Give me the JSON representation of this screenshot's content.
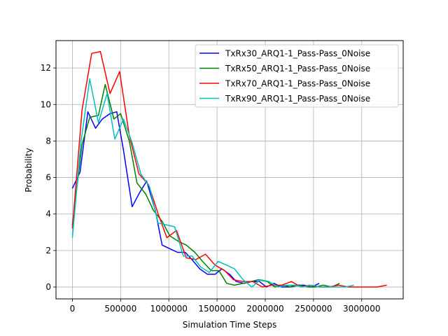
{
  "chart_data": {
    "type": "line",
    "title": "",
    "xlabel": "Simulation Time Steps",
    "ylabel": "Probability",
    "xlim": [
      -170000,
      3430000
    ],
    "ylim": [
      -0.65,
      13.5
    ],
    "xticks": [
      0,
      500000,
      1000000,
      1500000,
      2000000,
      2500000,
      3000000
    ],
    "xtick_labels": [
      "0",
      "500000",
      "1000000",
      "1500000",
      "2000000",
      "2500000",
      "3000000"
    ],
    "yticks": [
      0,
      2,
      4,
      6,
      8,
      10,
      12
    ],
    "ytick_labels": [
      "0",
      "2",
      "4",
      "6",
      "8",
      "10",
      "12"
    ],
    "grid": true,
    "legend_position": "top-right",
    "series": [
      {
        "name": "TxRx30_ARQ1-1_Pass-Pass_0Noise",
        "color": "#0000ff",
        "x": [
          0,
          80000,
          160000,
          240000,
          310000,
          390000,
          460000,
          530000,
          620000,
          700000,
          770000,
          860000,
          930000,
          1010000,
          1090000,
          1170000,
          1240000,
          1320000,
          1400000,
          1480000,
          1550000,
          1630000,
          1700000,
          1780000,
          1860000,
          1940000,
          2010000,
          2090000,
          2170000,
          2250000,
          2320000,
          2400000,
          2480000,
          2560000
        ],
        "y": [
          5.4,
          6.3,
          9.6,
          8.7,
          9.2,
          9.5,
          9.6,
          7.5,
          4.4,
          5.2,
          5.8,
          4.2,
          2.3,
          2.1,
          1.9,
          1.9,
          1.5,
          1.0,
          0.7,
          0.7,
          1.0,
          0.7,
          0.3,
          0.2,
          0.3,
          0.3,
          0.0,
          0.2,
          0.0,
          0.0,
          0.1,
          0.1,
          0.0,
          0.2
        ]
      },
      {
        "name": "TxRx50_ARQ1-1_Pass-Pass_0Noise",
        "color": "#008000",
        "x": [
          0,
          100000,
          180000,
          270000,
          340000,
          430000,
          500000,
          590000,
          670000,
          760000,
          840000,
          930000,
          1010000,
          1100000,
          1180000,
          1270000,
          1350000,
          1440000,
          1520000,
          1600000,
          1680000,
          1770000,
          1850000,
          1930000,
          2020000,
          2100000,
          2180000,
          2270000,
          2350000,
          2440000,
          2520000,
          2600000,
          2690000,
          2770000
        ],
        "y": [
          3.4,
          7.8,
          9.3,
          9.4,
          11.1,
          9.2,
          9.5,
          8.0,
          5.7,
          5.1,
          4.2,
          3.6,
          2.8,
          2.5,
          2.3,
          1.9,
          1.4,
          0.9,
          0.9,
          0.2,
          0.1,
          0.2,
          0.3,
          0.4,
          0.3,
          0.0,
          0.1,
          0.0,
          0.1,
          0.0,
          0.0,
          0.1,
          0.0,
          0.2
        ]
      },
      {
        "name": "TxRx70_ARQ1-1_Pass-Pass_0Noise",
        "color": "#ff0000",
        "x": [
          0,
          100000,
          200000,
          290000,
          390000,
          490000,
          590000,
          690000,
          790000,
          890000,
          980000,
          1080000,
          1180000,
          1280000,
          1380000,
          1480000,
          1580000,
          1670000,
          1770000,
          1870000,
          1970000,
          2070000,
          2170000,
          2270000,
          2370000,
          2460000,
          2560000,
          2660000,
          2760000,
          2860000,
          2960000,
          3060000,
          3160000,
          3260000
        ],
        "y": [
          3.2,
          9.7,
          12.8,
          12.9,
          10.6,
          11.8,
          8.3,
          6.2,
          5.6,
          4.0,
          2.7,
          3.1,
          1.6,
          1.5,
          1.8,
          1.2,
          0.9,
          0.4,
          0.3,
          0.3,
          0.0,
          0.1,
          0.1,
          0.3,
          0.0,
          0.1,
          0.0,
          0.0,
          0.1,
          0.0,
          0.0,
          0.0,
          0.0,
          0.1
        ]
      },
      {
        "name": "TxRx90_ARQ1-1_Pass-Pass_0Noise",
        "color": "#00bfbf",
        "x": [
          0,
          90000,
          180000,
          270000,
          360000,
          440000,
          530000,
          620000,
          710000,
          800000,
          890000,
          980000,
          1060000,
          1150000,
          1240000,
          1330000,
          1420000,
          1510000,
          1600000,
          1680000,
          1770000,
          1860000,
          1950000,
          2040000,
          2130000,
          2220000,
          2300000,
          2390000,
          2480000,
          2570000,
          2660000,
          2750000,
          2830000,
          2920000
        ],
        "y": [
          2.7,
          8.0,
          11.4,
          9.0,
          10.6,
          8.1,
          9.2,
          7.9,
          6.2,
          5.5,
          3.5,
          3.4,
          3.3,
          1.7,
          1.7,
          1.1,
          0.8,
          1.4,
          1.2,
          1.0,
          0.4,
          0.0,
          0.4,
          0.3,
          0.0,
          0.1,
          0.1,
          0.0,
          0.1,
          0.0,
          0.0,
          0.0,
          0.0,
          0.1
        ]
      }
    ]
  }
}
